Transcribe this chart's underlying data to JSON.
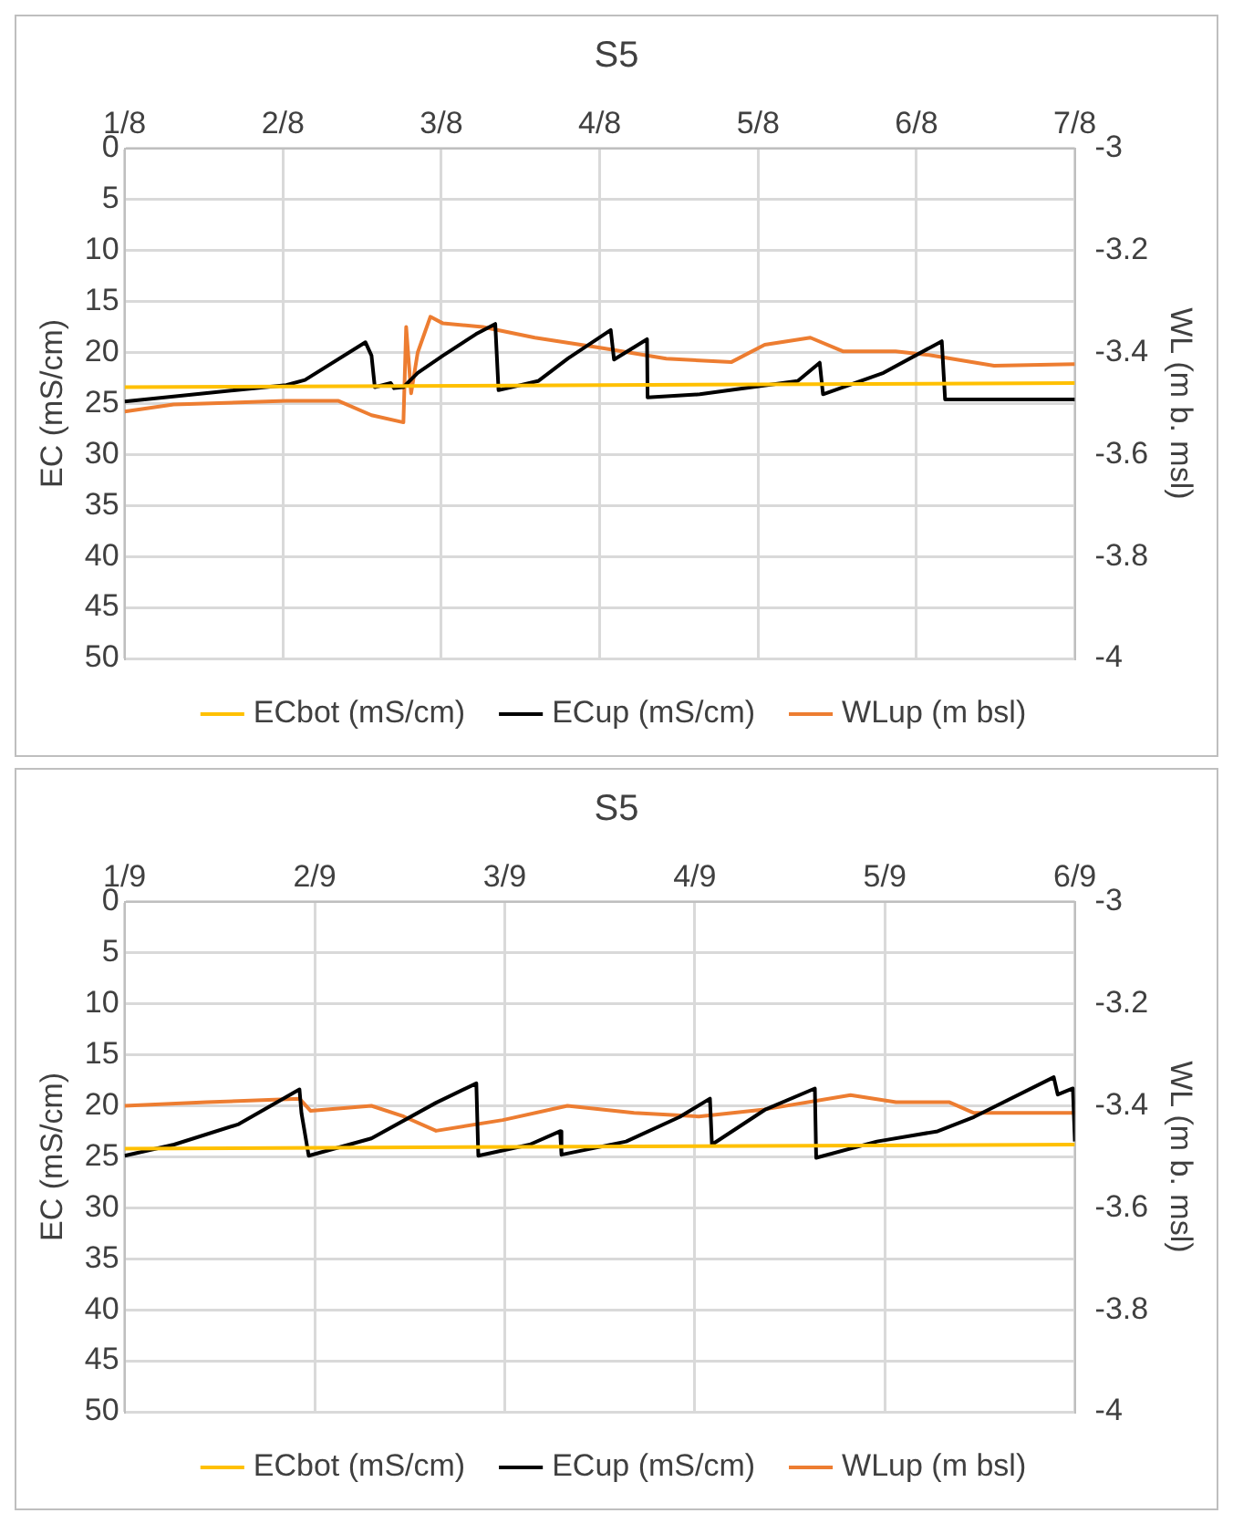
{
  "chart_data": [
    {
      "type": "line",
      "title": "S5",
      "ylabel": "EC (mS/cm)",
      "y2label": "WL (m b. msl)",
      "xlim": [
        "--08-01",
        "--08-07"
      ],
      "xticks": [
        {
          "value": "--08-01",
          "label": "1/8"
        },
        {
          "value": "--08-02",
          "label": "2/8"
        },
        {
          "value": "--08-03",
          "label": "3/8"
        },
        {
          "value": "--08-04",
          "label": "4/8"
        },
        {
          "value": "--08-05",
          "label": "5/8"
        },
        {
          "value": "--08-06",
          "label": "6/8"
        },
        {
          "value": "--08-07",
          "label": "7/8"
        }
      ],
      "ylim": [
        50,
        0
      ],
      "yticks": [
        0,
        5,
        10,
        15,
        20,
        25,
        30,
        35,
        40,
        45,
        50
      ],
      "y2lim": [
        -4,
        -3
      ],
      "y2ticks": [
        -4,
        -3.8,
        -3.6,
        -3.4,
        -3.2,
        -3
      ],
      "grid": true,
      "legend": "bottom",
      "marker": "none",
      "line_style": "solid",
      "series": [
        {
          "name": "ECbot (mS/cm)",
          "color": "#ffc000",
          "x": [
            "--08-01T00:00",
            "--08-07T00:00"
          ],
          "values": [
            23.4,
            23.0
          ]
        },
        {
          "name": "ECup (mS/cm)",
          "color": "#000000",
          "x": [
            "--08-01T00:00",
            "--08-02T00:30",
            "--08-02T03:20",
            "--08-02T12:30",
            "--08-02T13:25",
            "--08-02T13:55",
            "--08-02T16:20",
            "--08-02T16:50",
            "--08-02T18:15",
            "--08-02T20:25",
            "--08-03T00:15",
            "--08-03T05:15",
            "--08-03T08:10",
            "--08-03T08:40",
            "--08-03T14:40",
            "--08-03T19:10",
            "--08-04T01:40",
            "--08-04T02:10",
            "--08-04T07:10",
            "--08-04T07:15",
            "--08-04T15:10",
            "--08-05T06:00",
            "--08-05T09:20",
            "--08-05T09:50",
            "--08-05T19:00",
            "--08-06T03:50",
            "--08-06T04:20",
            "--08-06T10:50",
            "--08-07T00:00"
          ],
          "values": [
            24.8,
            23.2,
            22.7,
            19.0,
            20.3,
            23.4,
            23.0,
            23.5,
            23.4,
            22.0,
            20.3,
            18.2,
            17.2,
            23.7,
            22.8,
            20.6,
            17.8,
            20.7,
            18.7,
            24.4,
            24.1,
            22.8,
            21.0,
            24.1,
            22.0,
            18.9,
            24.6,
            24.6,
            24.6
          ]
        },
        {
          "name": "WLup (m bsl)",
          "color": "#ed7d31",
          "axis": "y2",
          "x": [
            "--08-01T00:00",
            "--08-01T07:25",
            "--08-02T00:30",
            "--08-02T08:25",
            "--08-02T13:25",
            "--08-02T18:15",
            "--08-02T18:40",
            "--08-02T19:25",
            "--08-02T20:25",
            "--08-02T22:20",
            "--08-03T00:15",
            "--08-03T06:15",
            "--08-03T14:10",
            "--08-04T00:15",
            "--08-04T10:05",
            "--08-04T19:55",
            "--08-05T01:00",
            "--08-05T07:55",
            "--08-05T12:55",
            "--08-05T20:50",
            "--08-06T01:55",
            "--08-06T11:45",
            "--08-07T00:00"
          ],
          "values": [
            -3.516,
            -3.502,
            -3.495,
            -3.495,
            -3.523,
            -3.537,
            -3.35,
            -3.48,
            -3.4,
            -3.33,
            -3.343,
            -3.35,
            -3.371,
            -3.391,
            -3.412,
            -3.419,
            -3.385,
            -3.371,
            -3.398,
            -3.398,
            -3.405,
            -3.426,
            -3.423
          ]
        }
      ]
    },
    {
      "type": "line",
      "title": "S5",
      "ylabel": "EC (mS/cm)",
      "y2label": "WL (m b. msl)",
      "xlim": [
        "--09-01",
        "--09-06"
      ],
      "xticks": [
        {
          "value": "--09-01",
          "label": "1/9"
        },
        {
          "value": "--09-02",
          "label": "2/9"
        },
        {
          "value": "--09-03",
          "label": "3/9"
        },
        {
          "value": "--09-04",
          "label": "4/9"
        },
        {
          "value": "--09-05",
          "label": "5/9"
        },
        {
          "value": "--09-06",
          "label": "6/9"
        }
      ],
      "ylim": [
        50,
        0
      ],
      "yticks": [
        0,
        5,
        10,
        15,
        20,
        25,
        30,
        35,
        40,
        45,
        50
      ],
      "y2lim": [
        -4,
        -3
      ],
      "y2ticks": [
        -4,
        -3.8,
        -3.6,
        -3.4,
        -3.2,
        -3
      ],
      "grid": true,
      "legend": "bottom",
      "marker": "none",
      "line_style": "solid",
      "series": [
        {
          "name": "ECbot (mS/cm)",
          "color": "#ffc000",
          "x": [
            "--09-01T00:00",
            "--09-06T00:00"
          ],
          "values": [
            24.2,
            23.8
          ]
        },
        {
          "name": "ECup (mS/cm)",
          "color": "#000000",
          "x": [
            "--09-01T00:00",
            "--09-01T06:15",
            "--09-01T14:25",
            "--09-01T22:05",
            "--09-01T22:20",
            "--09-01T23:15",
            "--09-02T07:10",
            "--09-02T15:20",
            "--09-02T20:25",
            "--09-02T20:40",
            "--09-03T03:10",
            "--09-03T07:00",
            "--09-03T07:10",
            "--09-03T15:20",
            "--09-03T22:05",
            "--09-04T01:55",
            "--09-04T02:10",
            "--09-04T08:50",
            "--09-04T15:10",
            "--09-04T15:20",
            "--09-04T23:00",
            "--09-05T06:40",
            "--09-05T11:15",
            "--09-05T21:20",
            "--09-05T21:50",
            "--09-05T23:45",
            "--09-06T00:00"
          ],
          "values": [
            24.9,
            23.8,
            21.8,
            18.4,
            20.7,
            24.9,
            23.2,
            19.7,
            17.8,
            24.9,
            23.8,
            22.5,
            24.8,
            23.5,
            21.1,
            19.3,
            23.8,
            20.4,
            18.3,
            25.1,
            23.5,
            22.5,
            21.1,
            17.2,
            18.9,
            18.3,
            23.5
          ]
        },
        {
          "name": "WLup (m bsl)",
          "color": "#ed7d31",
          "axis": "y2",
          "x": [
            "--09-01T00:00",
            "--09-01T10:20",
            "--09-01T22:05",
            "--09-01T23:30",
            "--09-02T07:10",
            "--09-02T11:15",
            "--09-02T15:20",
            "--09-02T23:45",
            "--09-03T07:55",
            "--09-03T16:20",
            "--09-04T00:30",
            "--09-04T08:50",
            "--09-04T19:40",
            "--09-05T01:25",
            "--09-05T08:10",
            "--09-05T11:15",
            "--09-05T18:00",
            "--09-06T00:00"
          ],
          "values": [
            -3.4,
            -3.393,
            -3.386,
            -3.41,
            -3.4,
            -3.421,
            -3.449,
            -3.428,
            -3.4,
            -3.414,
            -3.421,
            -3.407,
            -3.379,
            -3.393,
            -3.393,
            -3.414,
            -3.414,
            -3.414
          ]
        }
      ]
    }
  ]
}
